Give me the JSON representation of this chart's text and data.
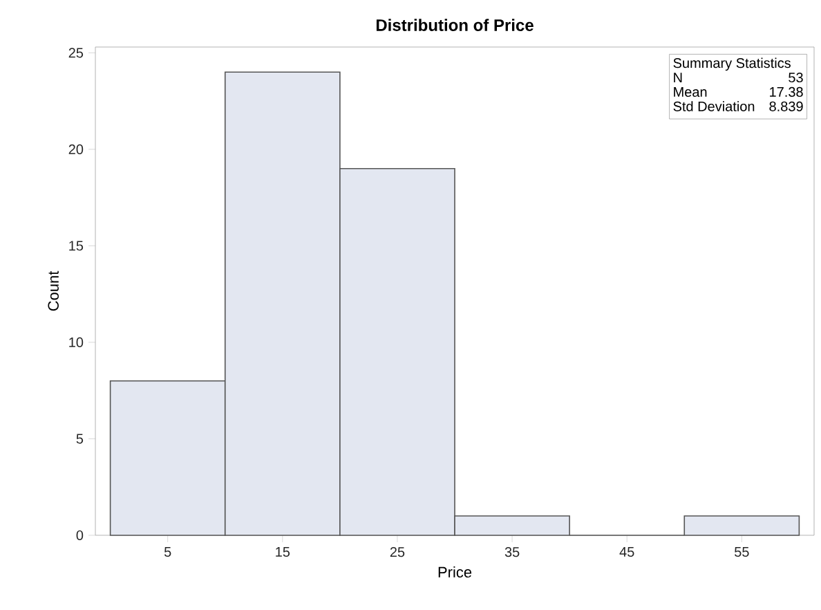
{
  "chart_data": {
    "type": "histogram",
    "title": "Distribution of Price",
    "xlabel": "Price",
    "ylabel": "Count",
    "bins": [
      0,
      10,
      20,
      30,
      40,
      50,
      60
    ],
    "values": [
      8,
      24,
      19,
      1,
      0,
      1
    ],
    "color": "#e3e7f1",
    "xlim": [
      -1.3,
      61.3
    ],
    "ylim": [
      0,
      25.3
    ],
    "xticks": [
      5,
      15,
      25,
      35,
      45,
      55
    ],
    "yticks": [
      0,
      5,
      10,
      15,
      20,
      25
    ],
    "grid": false,
    "annotations": [
      "Summary Statistics",
      "N",
      "53",
      "Mean",
      "17.38",
      "Std Deviation",
      "8.839"
    ]
  }
}
